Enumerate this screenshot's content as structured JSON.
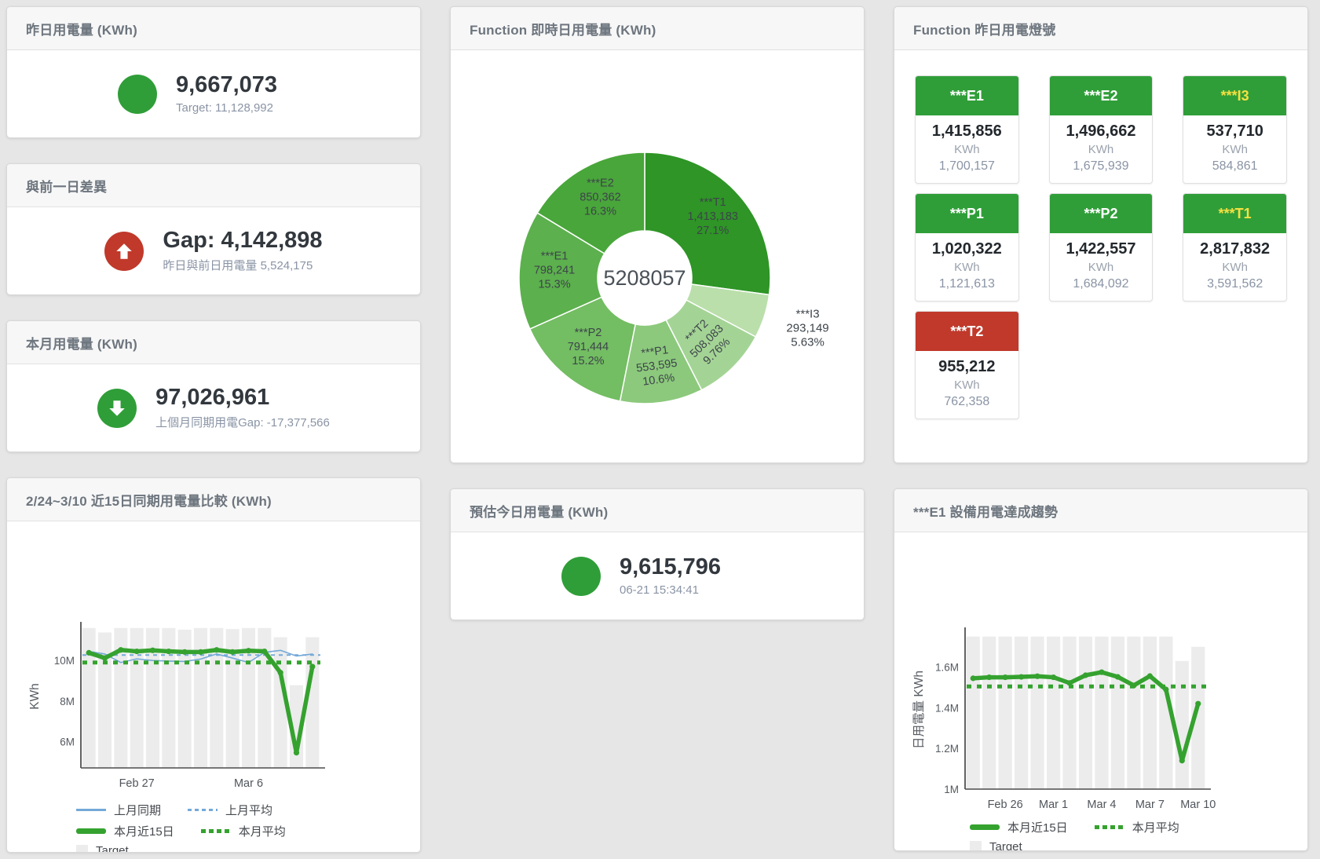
{
  "colors": {
    "green": "#2f9e38",
    "red": "#c0392b",
    "blue": "#74a9d8",
    "chart_green": "#35a22f",
    "bar_gray": "#ececec",
    "yellow": "#f5e042"
  },
  "cards": {
    "yesterday": {
      "title": "昨日用電量 (KWh)",
      "value": "9,667,073",
      "subtitle": "Target: 11,128,992"
    },
    "gap_prev_day": {
      "title": "與前一日差異",
      "value": "Gap: 4,142,898",
      "subtitle": "昨日與前日用電量 5,524,175"
    },
    "month": {
      "title": "本月用電量 (KWh)",
      "value": "97,026,961",
      "subtitle": "上個月同期用電Gap: -17,377,566"
    },
    "estimate_today": {
      "title": "預估今日用電量 (KWh)",
      "value": "9,615,796",
      "subtitle": "06-21 15:34:41"
    }
  },
  "donut_card": {
    "title": "Function 即時日用電量 (KWh)"
  },
  "compare_card": {
    "title": "2/24~3/10 近15日同期用電量比較 (KWh)"
  },
  "lamp_card": {
    "title": "Function 昨日用電燈號",
    "unit": "KWh",
    "tiles": [
      {
        "name": "***E1",
        "value": "1,415,856",
        "target": "1,700,157",
        "bg": "#2f9e38",
        "fg": "#ffffff"
      },
      {
        "name": "***E2",
        "value": "1,496,662",
        "target": "1,675,939",
        "bg": "#2f9e38",
        "fg": "#ffffff"
      },
      {
        "name": "***I3",
        "value": "537,710",
        "target": "584,861",
        "bg": "#2f9e38",
        "fg": "#f5e042"
      },
      {
        "name": "***P1",
        "value": "1,020,322",
        "target": "1,121,613",
        "bg": "#2f9e38",
        "fg": "#ffffff"
      },
      {
        "name": "***P2",
        "value": "1,422,557",
        "target": "1,684,092",
        "bg": "#2f9e38",
        "fg": "#ffffff"
      },
      {
        "name": "***T1",
        "value": "2,817,832",
        "target": "3,591,562",
        "bg": "#2f9e38",
        "fg": "#f5e042"
      },
      {
        "name": "***T2",
        "value": "955,212",
        "target": "762,358",
        "bg": "#c0392b",
        "fg": "#ffffff"
      }
    ]
  },
  "trend_card": {
    "title": "***E1 設備用電達成趨勢"
  },
  "chart_data": [
    {
      "type": "pie",
      "title": "Function 即時日用電量 (KWh)",
      "center_label": "5208057",
      "slices": [
        {
          "name": "***T1",
          "value": 1413183,
          "value_label": "1,413,183",
          "pct": "27.1%",
          "color": "#2e9526"
        },
        {
          "name": "***I3",
          "value": 293149,
          "value_label": "293,149",
          "pct": "5.63%",
          "color": "#badfab",
          "label_outside": true
        },
        {
          "name": "***T2",
          "value": 508083,
          "value_label": "508,083",
          "pct": "9.76%",
          "color": "#a4d495",
          "rotate_label": true
        },
        {
          "name": "***P1",
          "value": 553595,
          "value_label": "553,595",
          "pct": "10.6%",
          "color": "#8cc97c",
          "rotate_label": true
        },
        {
          "name": "***P2",
          "value": 791444,
          "value_label": "791,444",
          "pct": "15.2%",
          "color": "#73bd62"
        },
        {
          "name": "***E1",
          "value": 798241,
          "value_label": "798,241",
          "pct": "15.3%",
          "color": "#5cb04d"
        },
        {
          "name": "***E2",
          "value": 850362,
          "value_label": "850,362",
          "pct": "16.3%",
          "color": "#49a63a"
        }
      ]
    },
    {
      "type": "line",
      "title": "2/24~3/10 近15日同期用電量比較 (KWh)",
      "ylabel": "KWh",
      "unit": "M",
      "ylim": [
        4.7,
        11.75
      ],
      "yticks": [
        {
          "v": 6,
          "label": "6M"
        },
        {
          "v": 8,
          "label": "8M"
        },
        {
          "v": 10,
          "label": "10M"
        }
      ],
      "categories": [
        "Feb 24",
        "Feb 25",
        "Feb 26",
        "Feb 27",
        "Feb 28",
        "Mar 1",
        "Mar 2",
        "Mar 3",
        "Mar 4",
        "Mar 5",
        "Mar 6",
        "Mar 7",
        "Mar 8",
        "Mar 9",
        "Mar 10"
      ],
      "xticks": [
        {
          "i": 3,
          "label": "Feb 27"
        },
        {
          "i": 10,
          "label": "Mar 6"
        }
      ],
      "target": [
        11.6,
        11.38,
        11.6,
        11.6,
        11.6,
        11.6,
        11.52,
        11.6,
        11.6,
        11.55,
        11.6,
        11.6,
        11.15,
        8.78,
        11.15
      ],
      "series": [
        {
          "name": "上月同期",
          "color": "#74a9d8",
          "width": 1.6,
          "dash": null,
          "values": [
            10.45,
            10.32,
            9.9,
            10.08,
            10.0,
            9.97,
            9.95,
            10.07,
            10.32,
            10.12,
            9.9,
            10.4,
            10.5,
            10.22,
            10.32
          ]
        },
        {
          "name": "上月平均",
          "color": "#74a9d8",
          "width": 2,
          "dash": "5 5",
          "avg": 10.27
        },
        {
          "name": "本月平均",
          "color": "#35a22f",
          "width": 5,
          "dash": "6 7",
          "avg": 9.9
        },
        {
          "name": "本月近15日",
          "color": "#35a22f",
          "width": 5.5,
          "dash": null,
          "values": [
            10.38,
            10.12,
            10.52,
            10.45,
            10.5,
            10.45,
            10.42,
            10.42,
            10.52,
            10.42,
            10.48,
            10.45,
            9.4,
            5.45,
            9.7
          ]
        }
      ],
      "legend": [
        [
          {
            "label": "上月同期",
            "type": "line",
            "color": "#74a9d8"
          },
          {
            "label": "上月平均",
            "type": "dash",
            "color": "#74a9d8"
          }
        ],
        [
          {
            "label": "本月近15日",
            "type": "thick",
            "color": "#35a22f"
          },
          {
            "label": "本月平均",
            "type": "dots",
            "color": "#35a22f"
          }
        ],
        [
          {
            "label": "Target",
            "type": "box",
            "color": "#ececec"
          }
        ]
      ]
    },
    {
      "type": "line",
      "title": "***E1 設備用電達成趨勢",
      "ylabel": "日用電量 KWh",
      "unit": "M",
      "ylim": [
        1.0,
        1.78
      ],
      "yticks": [
        {
          "v": 1,
          "label": "1M"
        },
        {
          "v": 1.2,
          "label": "1.2M"
        },
        {
          "v": 1.4,
          "label": "1.4M"
        },
        {
          "v": 1.6,
          "label": "1.6M"
        }
      ],
      "categories": [
        "Feb 24",
        "Feb 25",
        "Feb 26",
        "Feb 27",
        "Feb 28",
        "Mar 1",
        "Mar 2",
        "Mar 3",
        "Mar 4",
        "Mar 5",
        "Mar 6",
        "Mar 7",
        "Mar 8",
        "Mar 9",
        "Mar 10"
      ],
      "xticks": [
        {
          "i": 2,
          "label": "Feb 26"
        },
        {
          "i": 5,
          "label": "Mar 1"
        },
        {
          "i": 8,
          "label": "Mar 4"
        },
        {
          "i": 11,
          "label": "Mar 7"
        },
        {
          "i": 14,
          "label": "Mar 10"
        }
      ],
      "target": [
        1.75,
        1.75,
        1.75,
        1.75,
        1.75,
        1.75,
        1.75,
        1.75,
        1.75,
        1.75,
        1.75,
        1.75,
        1.75,
        1.63,
        1.7
      ],
      "series": [
        {
          "name": "本月平均",
          "color": "#35a22f",
          "width": 5,
          "dash": "6 7",
          "avg": 1.505
        },
        {
          "name": "本月近15日",
          "color": "#35a22f",
          "width": 5.5,
          "dash": null,
          "values": [
            1.545,
            1.55,
            1.55,
            1.552,
            1.555,
            1.55,
            1.522,
            1.56,
            1.575,
            1.552,
            1.51,
            1.556,
            1.49,
            1.14,
            1.42
          ]
        }
      ],
      "legend": [
        [
          {
            "label": "本月近15日",
            "type": "thick",
            "color": "#35a22f"
          },
          {
            "label": "本月平均",
            "type": "dots",
            "color": "#35a22f"
          }
        ],
        [
          {
            "label": "Target",
            "type": "box",
            "color": "#ececec"
          }
        ]
      ]
    }
  ]
}
